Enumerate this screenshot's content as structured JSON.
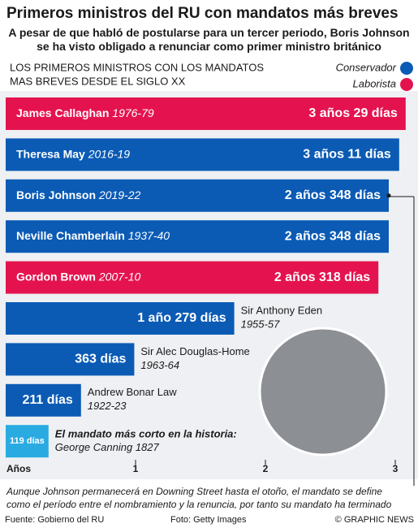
{
  "title": "Primeros ministros del RU con mandatos más breves",
  "subtitle": "A pesar de que habló de postularse para un tercer periodo, Boris Johnson se ha visto obligado a renunciar como primer ministro británico",
  "chart_data": {
    "type": "bar",
    "orientation": "horizontal",
    "heading": [
      "LOS PRIMEROS MINISTROS CON LOS MANDATOS",
      "MAS BREVES DESDE EL SIGLO XX"
    ],
    "legend": [
      {
        "name": "Conservador",
        "color": "#0b5bb5"
      },
      {
        "name": "Laborista",
        "color": "#e4134f"
      }
    ],
    "categories": [
      "James Callaghan",
      "Theresa May",
      "Boris Johnson",
      "Neville Chamberlain",
      "Gordon Brown",
      "Sir Anthony Eden",
      "Sir Alec Douglas-Home",
      "Andrew Bonar Law",
      "George Canning"
    ],
    "years": [
      "1976-79",
      "2016-19",
      "2019-22",
      "1937-40",
      "2007-10",
      "1955-57",
      "1963-64",
      "1922-23",
      "1827"
    ],
    "values": [
      3.08,
      3.03,
      2.95,
      2.95,
      2.87,
      1.76,
      0.99,
      0.58,
      0.33
    ],
    "value_labels": [
      "3 años 29 días",
      "3 años 11 días",
      "2 años 348 días",
      "2 años 348 días",
      "2 años 318 días",
      "1 año  279 días",
      "363 días",
      "211 días",
      "119 días"
    ],
    "colors": [
      "#e4134f",
      "#0b5bb5",
      "#0b5bb5",
      "#0b5bb5",
      "#e4134f",
      "#0b5bb5",
      "#0b5bb5",
      "#0b5bb5",
      "#29abe2"
    ],
    "annotation": "El mandato más corto en la historia:",
    "xlabel": "Años",
    "xlim": [
      0,
      3.1
    ],
    "xticks": [
      1,
      2,
      3
    ]
  },
  "footnote": [
    "Aunque Johnson permanecerá en Downing Street hasta el otoño, el mandato se define",
    "como el período entre el nombramiento y la renuncia, por tanto su mandato ha terminado"
  ],
  "footer": {
    "source": "Fuente: Gobierno del RU",
    "photo": "Foto: Getty Images",
    "credit": "© GRAPHIC NEWS"
  }
}
